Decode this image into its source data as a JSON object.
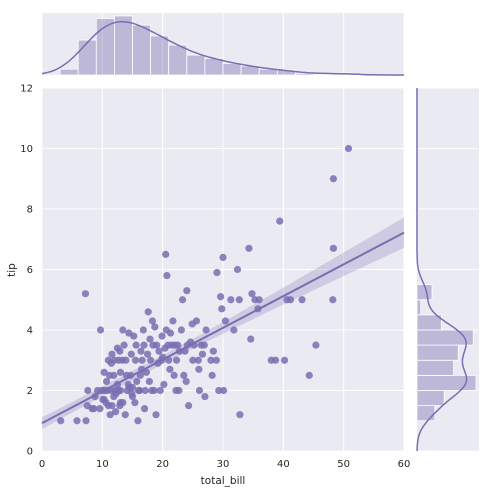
{
  "colors": {
    "accent": "#7b6db1",
    "accent_light": "#b8b2d6",
    "panel_bg": "#eaeaf2",
    "grid": "#ffffff"
  },
  "chart_data": {
    "type": "scatter",
    "kind": "jointplot with regression",
    "xlabel": "total_bill",
    "ylabel": "tip",
    "xlim": [
      0,
      60
    ],
    "ylim": [
      0,
      12
    ],
    "xticks": [
      "0",
      "10",
      "20",
      "30",
      "40",
      "50",
      "60"
    ],
    "yticks": [
      "0",
      "2",
      "4",
      "6",
      "8",
      "10",
      "12"
    ],
    "grid": true,
    "regression": {
      "intercept": 0.92,
      "slope": 0.105,
      "ci_band_at_xmin": [
        0.73,
        1.12
      ],
      "ci_band_at_xmax": [
        6.65,
        7.65
      ]
    },
    "points": [
      [
        3.1,
        1.0
      ],
      [
        5.8,
        1.0
      ],
      [
        7.3,
        1.0
      ],
      [
        7.5,
        1.5
      ],
      [
        7.6,
        2.0
      ],
      [
        7.2,
        5.2
      ],
      [
        8.3,
        1.4
      ],
      [
        8.6,
        1.4
      ],
      [
        8.8,
        1.8
      ],
      [
        9.6,
        1.4
      ],
      [
        9.9,
        2.0
      ],
      [
        9.7,
        4.0
      ],
      [
        10.1,
        1.7
      ],
      [
        10.3,
        1.7
      ],
      [
        10.3,
        2.0
      ],
      [
        10.6,
        1.6
      ],
      [
        10.8,
        2.0
      ],
      [
        11.0,
        1.5
      ],
      [
        11.4,
        2.0
      ],
      [
        11.6,
        1.5
      ],
      [
        11.9,
        1.8
      ],
      [
        10.3,
        2.6
      ],
      [
        10.7,
        2.3
      ],
      [
        11.2,
        2.5
      ],
      [
        11.6,
        3.2
      ],
      [
        11.9,
        2.5
      ],
      [
        11.0,
        3.0
      ],
      [
        12.0,
        2.0
      ],
      [
        12.3,
        1.9
      ],
      [
        12.5,
        2.2
      ],
      [
        12.7,
        2.0
      ],
      [
        12.9,
        1.5
      ],
      [
        13.0,
        2.0
      ],
      [
        13.0,
        1.6
      ],
      [
        13.4,
        1.6
      ],
      [
        13.0,
        2.6
      ],
      [
        12.7,
        3.0
      ],
      [
        12.5,
        3.4
      ],
      [
        13.3,
        3.0
      ],
      [
        13.4,
        4.0
      ],
      [
        13.9,
        3.0
      ],
      [
        14.1,
        2.0
      ],
      [
        14.3,
        2.2
      ],
      [
        14.5,
        2.1
      ],
      [
        14.7,
        2.5
      ],
      [
        14.8,
        3.2
      ],
      [
        14.9,
        1.9
      ],
      [
        15.0,
        1.8
      ],
      [
        15.4,
        1.6
      ],
      [
        15.5,
        3.0
      ],
      [
        15.6,
        3.5
      ],
      [
        15.7,
        2.3
      ],
      [
        16.0,
        2.0
      ],
      [
        16.2,
        2.0
      ],
      [
        16.3,
        2.5
      ],
      [
        16.4,
        3.3
      ],
      [
        16.6,
        3.0
      ],
      [
        16.9,
        3.5
      ],
      [
        17.1,
        2.0
      ],
      [
        17.3,
        2.6
      ],
      [
        17.5,
        3.2
      ],
      [
        17.8,
        2.3
      ],
      [
        18.0,
        3.0
      ],
      [
        18.2,
        2.0
      ],
      [
        18.4,
        3.5
      ],
      [
        18.6,
        2.0
      ],
      [
        18.7,
        4.1
      ],
      [
        19.0,
        3.5
      ],
      [
        19.4,
        3.3
      ],
      [
        19.6,
        2.0
      ],
      [
        19.8,
        3.0
      ],
      [
        20.0,
        3.1
      ],
      [
        20.2,
        2.2
      ],
      [
        20.4,
        3.4
      ],
      [
        20.6,
        4.0
      ],
      [
        20.9,
        3.5
      ],
      [
        21.0,
        3.0
      ],
      [
        21.2,
        2.7
      ],
      [
        21.5,
        3.5
      ],
      [
        21.7,
        4.3
      ],
      [
        22.0,
        3.5
      ],
      [
        22.2,
        2.0
      ],
      [
        22.5,
        3.5
      ],
      [
        22.8,
        3.3
      ],
      [
        23.1,
        4.0
      ],
      [
        23.3,
        5.0
      ],
      [
        23.7,
        3.3
      ],
      [
        24.1,
        3.5
      ],
      [
        24.3,
        1.5
      ],
      [
        24.6,
        3.6
      ],
      [
        24.9,
        4.2
      ],
      [
        25.2,
        3.5
      ],
      [
        25.6,
        4.3
      ],
      [
        25.9,
        3.0
      ],
      [
        26.1,
        2.0
      ],
      [
        26.4,
        3.5
      ],
      [
        26.9,
        3.5
      ],
      [
        27.2,
        4.0
      ],
      [
        28.0,
        3.0
      ],
      [
        28.2,
        2.5
      ],
      [
        28.4,
        3.3
      ],
      [
        28.9,
        3.0
      ],
      [
        29.0,
        5.9
      ],
      [
        29.3,
        2.0
      ],
      [
        29.6,
        5.1
      ],
      [
        29.8,
        4.7
      ],
      [
        30.1,
        2.0
      ],
      [
        30.4,
        4.3
      ],
      [
        31.3,
        5.0
      ],
      [
        32.4,
        6.0
      ],
      [
        32.7,
        5.0
      ],
      [
        32.8,
        1.2
      ],
      [
        34.3,
        6.7
      ],
      [
        34.6,
        3.7
      ],
      [
        34.8,
        5.2
      ],
      [
        35.3,
        5.0
      ],
      [
        35.8,
        4.7
      ],
      [
        36.0,
        5.0
      ],
      [
        38.0,
        3.0
      ],
      [
        38.7,
        3.0
      ],
      [
        39.4,
        7.6
      ],
      [
        40.2,
        3.0
      ],
      [
        40.6,
        5.0
      ],
      [
        41.2,
        5.0
      ],
      [
        43.1,
        5.0
      ],
      [
        44.3,
        2.5
      ],
      [
        45.4,
        3.5
      ],
      [
        48.2,
        5.0
      ],
      [
        48.3,
        9.0
      ],
      [
        48.3,
        6.7
      ],
      [
        50.8,
        10.0
      ],
      [
        20.5,
        6.5
      ],
      [
        15.0,
        2.1
      ],
      [
        14.0,
        2.5
      ],
      [
        16.5,
        2.7
      ],
      [
        17.9,
        3.7
      ],
      [
        19.2,
        2.9
      ],
      [
        21.9,
        2.5
      ],
      [
        23.9,
        2.3
      ],
      [
        25.0,
        3.0
      ],
      [
        13.8,
        1.2
      ],
      [
        12.2,
        1.3
      ],
      [
        11.3,
        1.2
      ],
      [
        17.0,
        1.4
      ],
      [
        18.9,
        1.2
      ],
      [
        15.9,
        1.0
      ],
      [
        9.2,
        2.0
      ],
      [
        22.7,
        2.0
      ],
      [
        27.0,
        1.8
      ],
      [
        26.6,
        3.2
      ],
      [
        24.0,
        5.3
      ],
      [
        20.7,
        5.8
      ],
      [
        31.8,
        4.0
      ],
      [
        30.0,
        6.4
      ],
      [
        26.0,
        2.7
      ],
      [
        23.5,
        2.5
      ],
      [
        22.3,
        3.0
      ],
      [
        21.3,
        3.9
      ],
      [
        19.9,
        3.8
      ],
      [
        18.3,
        4.3
      ],
      [
        17.6,
        4.6
      ],
      [
        16.8,
        4.0
      ],
      [
        15.2,
        3.8
      ],
      [
        14.4,
        3.9
      ],
      [
        13.6,
        3.5
      ],
      [
        12.9,
        3.3
      ],
      [
        12.0,
        3.0
      ],
      [
        11.5,
        2.9
      ]
    ],
    "top_hist": {
      "bin_edges": [
        3,
        6,
        9,
        12,
        15,
        18,
        21,
        24,
        27,
        30,
        33,
        36,
        39,
        42,
        45,
        48,
        51
      ],
      "counts": [
        7,
        42,
        68,
        71,
        60,
        47,
        36,
        24,
        20,
        14,
        11,
        7,
        6,
        2,
        1,
        3
      ]
    },
    "right_hist": {
      "bin_edges": [
        1.0,
        1.5,
        2.0,
        2.5,
        3.0,
        3.5,
        4.0,
        4.5,
        5.0,
        5.5
      ],
      "counts": [
        19,
        29,
        63,
        39,
        44,
        60,
        26,
        4,
        16
      ]
    }
  }
}
